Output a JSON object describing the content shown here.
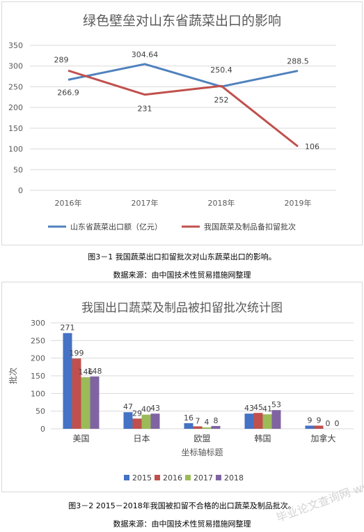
{
  "figure1": {
    "caption": "图3－1  我国蔬菜出口扣留批次对山东蔬菜出口的影响。",
    "source": "数据来源：由中国技术性贸易措施网整理",
    "chart_data": {
      "type": "line",
      "title": "绿色壁垒对山东省蔬菜出口的影响",
      "categories": [
        "2016年",
        "2017年",
        "2018年",
        "2019年"
      ],
      "ylim": [
        0,
        350
      ],
      "yticks": [
        0,
        50,
        100,
        150,
        200,
        250,
        300,
        350
      ],
      "grid": true,
      "legend_position": "bottom",
      "series": [
        {
          "name": "山东省蔬菜出口额（亿元）",
          "color": "#4f81bd",
          "values": [
            266.9,
            304.64,
            250.4,
            288.5
          ],
          "labels": [
            "266.9",
            "304.64",
            "250.4",
            "288.5"
          ]
        },
        {
          "name": "我国蔬菜及制品备扣留批次",
          "color": "#c0504d",
          "values": [
            289,
            231,
            252,
            106
          ],
          "labels": [
            "289",
            "231",
            "252",
            "106"
          ]
        }
      ]
    }
  },
  "figure2": {
    "caption": "图3－2    2015－2018年我国被扣留不合格的出口蔬菜及制品批次。",
    "source": "数据来源：由中国技术性贸易措施网整理",
    "chart_data": {
      "type": "bar",
      "title": "我国出口蔬菜及制品被扣留批次统计图",
      "xlabel": "坐标轴标题",
      "ylabel": "批次",
      "categories": [
        "美国",
        "日本",
        "欧盟",
        "韩国",
        "加拿大"
      ],
      "ylim": [
        0,
        300
      ],
      "yticks": [
        0,
        50,
        100,
        150,
        200,
        250,
        300
      ],
      "grid": true,
      "legend_position": "bottom",
      "series": [
        {
          "name": "2015",
          "color": "#4472c4",
          "values": [
            271,
            47,
            16,
            43,
            9
          ]
        },
        {
          "name": "2016",
          "color": "#c0504d",
          "values": [
            199,
            29,
            7,
            45,
            9
          ]
        },
        {
          "name": "2017",
          "color": "#9bbb59",
          "values": [
            146,
            40,
            4,
            41,
            0
          ]
        },
        {
          "name": "2018",
          "color": "#8064a2",
          "values": [
            148,
            43,
            8,
            53,
            0
          ]
        }
      ]
    }
  },
  "watermark": "毕业论文查询网 www.sbvv.com"
}
